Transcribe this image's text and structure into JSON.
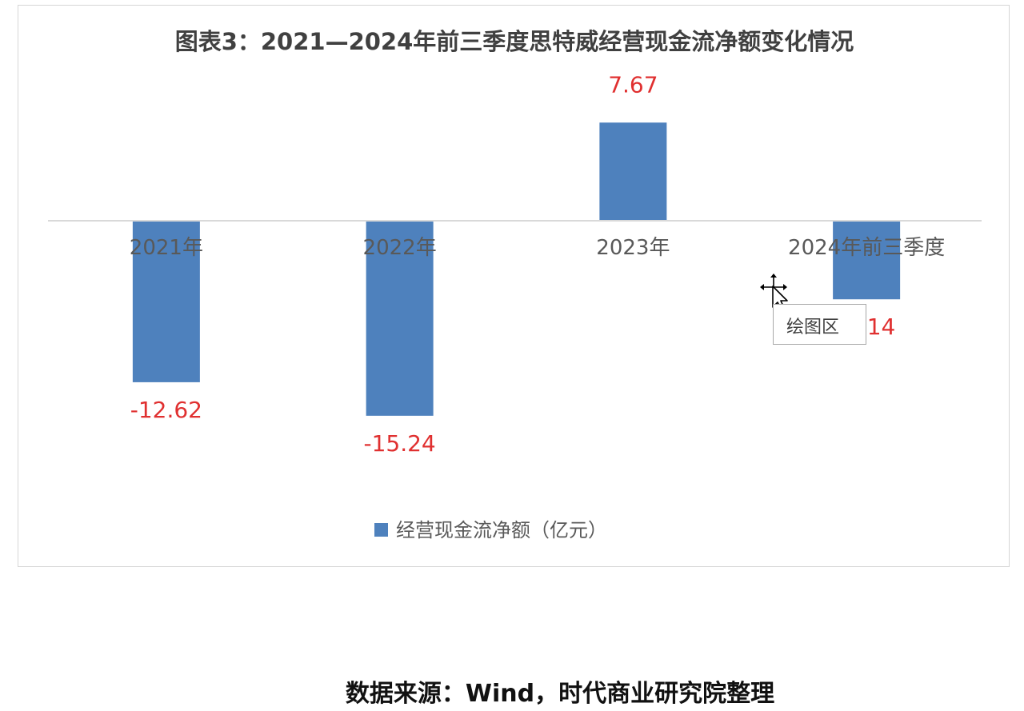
{
  "chart_data": {
    "type": "bar",
    "title": "图表3：2021—2024年前三季度思特威经营现金流净额变化情况",
    "categories": [
      "2021年",
      "2022年",
      "2023年",
      "2024年前三季度"
    ],
    "series": [
      {
        "name": "经营现金流净额（亿元）",
        "values": [
          -12.62,
          -15.24,
          7.67,
          -6.14
        ],
        "color": "#4e81bd"
      }
    ],
    "data_labels": [
      "-12.62",
      "-15.24",
      "7.67",
      "-6.14"
    ],
    "data_label_color": "#e03030",
    "ylim": [
      -20,
      10
    ],
    "gridlines": false,
    "legend_position": "bottom",
    "axis_line_color": "#d9d9d9"
  },
  "tooltip": {
    "text": "绘图区"
  },
  "source": {
    "text": "数据来源：Wind，时代商业研究院整理"
  }
}
